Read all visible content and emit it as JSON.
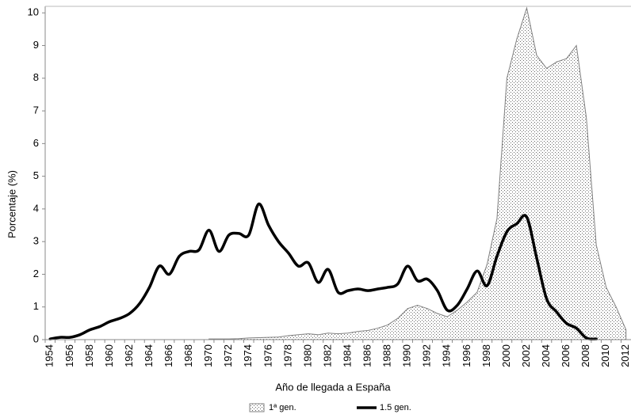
{
  "chart_data": {
    "type": "area_line",
    "xlabel": "Año de llegada a España",
    "ylabel": "Porcentaje (%)",
    "categories": [
      "1954",
      null,
      "1956",
      null,
      "1958",
      null,
      "1960",
      null,
      "1962",
      null,
      "1964",
      null,
      "1966",
      null,
      "1968",
      null,
      "1970",
      null,
      "1972",
      null,
      "1974",
      null,
      "1976",
      null,
      "1978",
      null,
      "1980",
      null,
      "1982",
      null,
      "1984",
      null,
      "1986",
      null,
      "1988",
      null,
      "1990",
      null,
      "1992",
      null,
      "1994",
      null,
      "1996",
      null,
      "1998",
      null,
      "2000",
      null,
      "2002",
      null,
      "2004",
      null,
      "2006",
      null,
      "2008",
      null,
      "2010",
      null,
      "2012"
    ],
    "series": [
      {
        "name": "1ª gen.",
        "kind": "area",
        "color": "#808080",
        "values": [
          null,
          null,
          null,
          null,
          null,
          null,
          null,
          null,
          null,
          null,
          null,
          null,
          null,
          null,
          null,
          null,
          0.02,
          0.02,
          0.02,
          0.03,
          0.05,
          0.06,
          0.07,
          0.08,
          0.12,
          0.15,
          0.18,
          0.15,
          0.2,
          0.18,
          0.2,
          0.25,
          0.28,
          0.35,
          0.45,
          0.65,
          0.95,
          1.05,
          0.95,
          0.8,
          0.7,
          0.9,
          1.15,
          1.45,
          2.3,
          3.7,
          8.0,
          9.2,
          10.15,
          8.7,
          8.3,
          8.5,
          8.6,
          9.0,
          6.8,
          2.9,
          1.6,
          1.0,
          0.3
        ]
      },
      {
        "name": "1.5 gen.",
        "kind": "line",
        "color": "#000000",
        "values": [
          0.02,
          0.07,
          0.07,
          0.15,
          0.3,
          0.4,
          0.55,
          0.65,
          0.8,
          1.1,
          1.6,
          2.25,
          2.0,
          2.55,
          2.7,
          2.75,
          3.35,
          2.7,
          3.2,
          3.25,
          3.2,
          4.15,
          3.5,
          3.0,
          2.65,
          2.25,
          2.35,
          1.75,
          2.15,
          1.45,
          1.5,
          1.55,
          1.5,
          1.55,
          1.6,
          1.7,
          2.25,
          1.8,
          1.85,
          1.5,
          0.9,
          1.05,
          1.55,
          2.1,
          1.65,
          2.55,
          3.3,
          3.55,
          3.75,
          2.5,
          1.25,
          0.85,
          0.5,
          0.35,
          0.05,
          0.02,
          null,
          null,
          null
        ]
      }
    ],
    "ylim": [
      0,
      10.2
    ],
    "yticks": [
      0,
      1,
      2,
      3,
      4,
      5,
      6,
      7,
      8,
      9,
      10
    ],
    "grid": false,
    "legend": "bottom"
  }
}
